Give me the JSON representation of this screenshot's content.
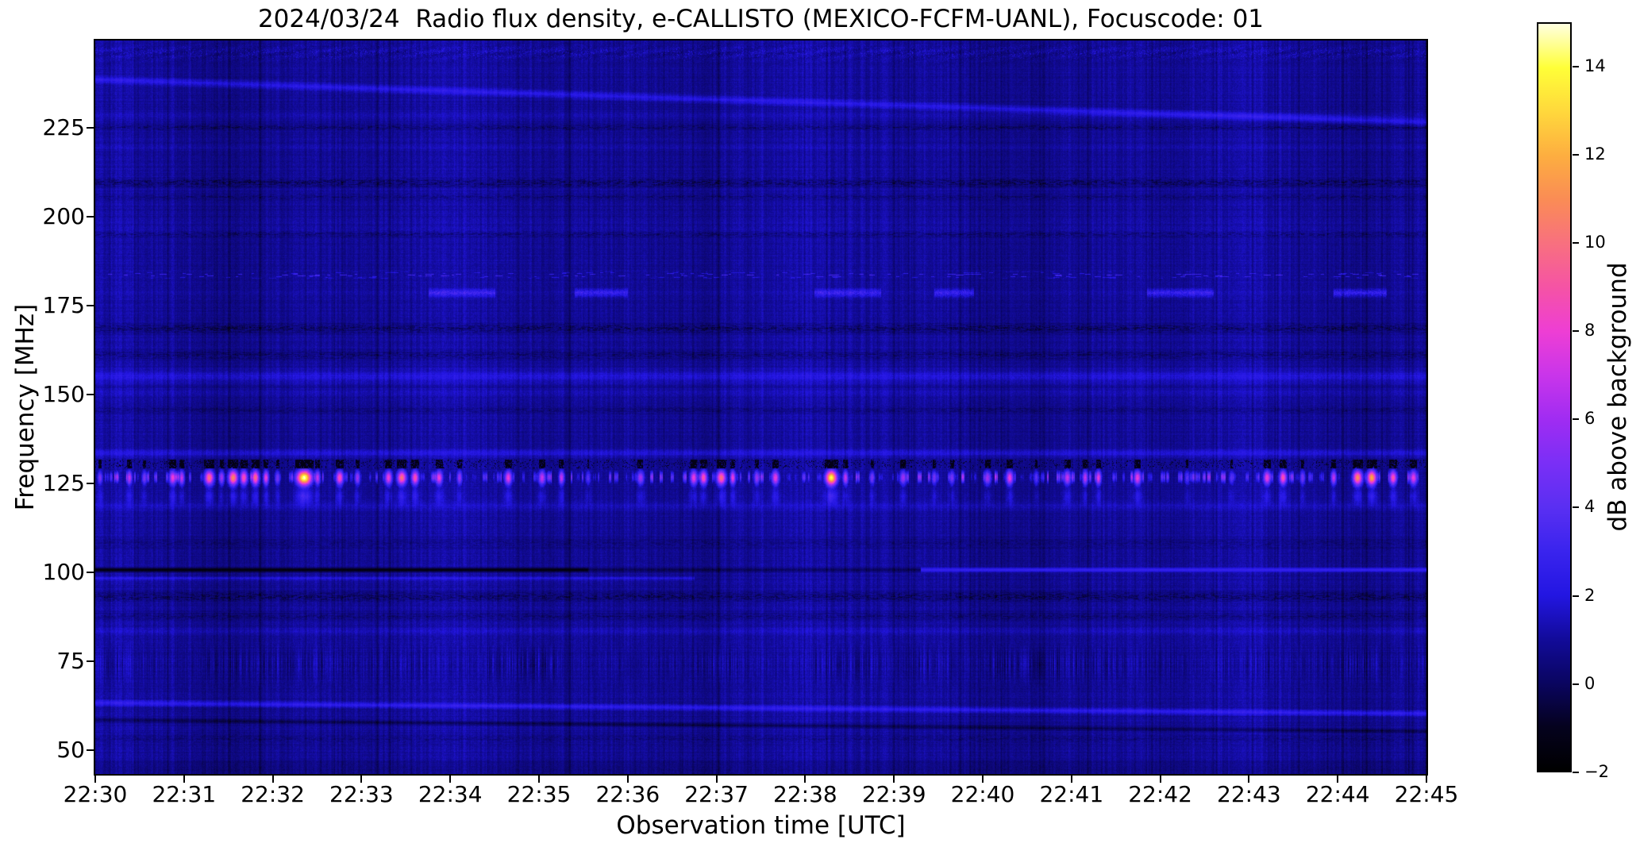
{
  "chart_data": {
    "type": "heatmap",
    "title": "2024/03/24  Radio flux density, e-CALLISTO (MEXICO-FCFM-UANL), Focuscode: 01",
    "xlabel": "Observation time [UTC]",
    "ylabel": "Frequency [MHz]",
    "x_ticks": [
      "22:30",
      "22:31",
      "22:32",
      "22:33",
      "22:34",
      "22:35",
      "22:36",
      "22:37",
      "22:38",
      "22:39",
      "22:40",
      "22:41",
      "22:42",
      "22:43",
      "22:44",
      "22:45"
    ],
    "y_ticks": [
      225,
      200,
      175,
      150,
      125,
      100,
      75,
      50
    ],
    "time_span_minutes": 15,
    "freq_limits_mhz": [
      43.2,
      249.5
    ],
    "grid": false,
    "legend": "none",
    "colorbar": {
      "label": "dB above background",
      "ticks": [
        -2,
        0,
        2,
        4,
        6,
        8,
        10,
        12,
        14
      ],
      "range": [
        -2,
        15
      ],
      "colormap_stops": [
        {
          "v": -2,
          "c": "#000000"
        },
        {
          "v": -1,
          "c": "#05021e"
        },
        {
          "v": 0,
          "c": "#0a0560"
        },
        {
          "v": 1,
          "c": "#120b9a"
        },
        {
          "v": 2,
          "c": "#2316e2"
        },
        {
          "v": 3,
          "c": "#3a24ee"
        },
        {
          "v": 4,
          "c": "#5a2ff2"
        },
        {
          "v": 5,
          "c": "#7a2ff6"
        },
        {
          "v": 6,
          "c": "#a02cf2"
        },
        {
          "v": 7,
          "c": "#c935ea"
        },
        {
          "v": 8,
          "c": "#ee3ed4"
        },
        {
          "v": 9,
          "c": "#f553a5"
        },
        {
          "v": 10,
          "c": "#f8707f"
        },
        {
          "v": 11,
          "c": "#fa8c55"
        },
        {
          "v": 12,
          "c": "#fdae40"
        },
        {
          "v": 13,
          "c": "#ffd83c"
        },
        {
          "v": 14,
          "c": "#ffff38"
        },
        {
          "v": 15,
          "c": "#ffffe0"
        }
      ]
    },
    "background_db": 0.95,
    "bands": [
      {
        "style": "noise",
        "f": 246.0,
        "w": 3.5,
        "dv": 0.8
      },
      {
        "style": "smooth",
        "f": 228.5,
        "w": 1.2,
        "dv": 0.4
      },
      {
        "style": "speckle",
        "f": 225.0,
        "w": 1.2,
        "dv": -0.9
      },
      {
        "style": "smooth",
        "f": 219.5,
        "w": 1.0,
        "dv": 0.35
      },
      {
        "style": "speckle",
        "f": 209.5,
        "w": 1.8,
        "dv": -1.2
      },
      {
        "style": "speckle",
        "f": 205.5,
        "w": 1.2,
        "dv": -0.7
      },
      {
        "style": "smooth",
        "f": 196.0,
        "w": 3.5,
        "dv": 0.2
      },
      {
        "style": "speckle",
        "f": 195.0,
        "w": 1.3,
        "dv": -0.9
      },
      {
        "style": "dashes",
        "f": 183.5,
        "w": 1.2,
        "dv": 2.4
      },
      {
        "style": "patchy",
        "f": 178.5,
        "w": 1.6,
        "dv": 2.0,
        "segments": [
          [
            0.25,
            0.3
          ],
          [
            0.36,
            0.4
          ],
          [
            0.54,
            0.59
          ],
          [
            0.63,
            0.66
          ],
          [
            0.79,
            0.84
          ],
          [
            0.93,
            0.97
          ]
        ]
      },
      {
        "style": "speckle",
        "f": 168.5,
        "w": 2.0,
        "dv": -1.1
      },
      {
        "style": "speckle",
        "f": 161.0,
        "w": 2.0,
        "dv": -0.8
      },
      {
        "style": "smooth",
        "f": 155.0,
        "w": 2.8,
        "dv": 1.0
      },
      {
        "style": "smooth",
        "f": 150.5,
        "w": 1.6,
        "dv": 0.5
      },
      {
        "style": "speckle",
        "f": 145.5,
        "w": 1.5,
        "dv": -0.6
      },
      {
        "style": "smooth",
        "f": 133.5,
        "w": 1.6,
        "dv": 1.1
      },
      {
        "style": "smooth",
        "f": 118.5,
        "w": 2.0,
        "dv": 0.55
      },
      {
        "style": "speckle",
        "f": 108.0,
        "w": 2.5,
        "dv": -0.5
      },
      {
        "style": "speckle",
        "f": 93.0,
        "w": 2.0,
        "dv": -1.1
      },
      {
        "style": "speckle",
        "f": 87.5,
        "w": 1.5,
        "dv": -0.7
      },
      {
        "style": "smooth",
        "f": 83.5,
        "w": 1.5,
        "dv": 0.5
      },
      {
        "style": "vstripes",
        "f": 74.0,
        "w": 6.5,
        "dv": 0.85
      },
      {
        "style": "speckle",
        "f": 53.0,
        "w": 2.0,
        "dv": -0.5
      }
    ],
    "slope_features": [
      {
        "f0": 238.5,
        "f1": 226.5,
        "w": 1.5,
        "dv": 1.4
      },
      {
        "f0": 63.2,
        "f1": 60.2,
        "w": 1.2,
        "dv": 1.7
      },
      {
        "f0": 58.4,
        "f1": 55.2,
        "w": 0.9,
        "dv": -1.2
      }
    ],
    "rfi_100mhz": {
      "f": 100.6,
      "w": 0.9,
      "segments": [
        {
          "from": 0.0,
          "to": 0.37,
          "mode": "set",
          "v": -1.75
        },
        {
          "from": 0.37,
          "to": 0.62,
          "mode": "add",
          "v": -1.2
        },
        {
          "from": 0.62,
          "to": 1.0,
          "mode": "set",
          "v": 2.9
        }
      ],
      "bright_below": {
        "f": 98.2,
        "w": 0.8,
        "dv": 1.1,
        "x_to": 0.45
      }
    },
    "burst_band": {
      "center_mhz": 126.5,
      "half_width_mhz": 4,
      "base_darkening_db": -3.4,
      "minor_blip_db_range": [
        1.5,
        5.5
      ],
      "bursts_t_db_w": [
        [
          0.05,
          5,
          3
        ],
        [
          0.38,
          7,
          3
        ],
        [
          0.55,
          5,
          3
        ],
        [
          0.87,
          8,
          4
        ],
        [
          0.97,
          7,
          3
        ],
        [
          1.28,
          10,
          5
        ],
        [
          1.42,
          6,
          3
        ],
        [
          1.55,
          11,
          5
        ],
        [
          1.67,
          9,
          4
        ],
        [
          1.8,
          10,
          4
        ],
        [
          1.92,
          8,
          3
        ],
        [
          2.05,
          5,
          3
        ],
        [
          2.35,
          15,
          8
        ],
        [
          2.5,
          7,
          3
        ],
        [
          2.75,
          9,
          4
        ],
        [
          2.95,
          6,
          3
        ],
        [
          3.3,
          8,
          4
        ],
        [
          3.45,
          10,
          5
        ],
        [
          3.6,
          9,
          4
        ],
        [
          3.87,
          8,
          4
        ],
        [
          4.1,
          6,
          3
        ],
        [
          4.65,
          8,
          4
        ],
        [
          5.03,
          7,
          4
        ],
        [
          5.25,
          7,
          3
        ],
        [
          5.55,
          4,
          3
        ],
        [
          6.14,
          6,
          4
        ],
        [
          6.74,
          8,
          4
        ],
        [
          6.85,
          9,
          4
        ],
        [
          7.05,
          10,
          5
        ],
        [
          7.18,
          8,
          3
        ],
        [
          7.45,
          6,
          3
        ],
        [
          7.66,
          8,
          4
        ],
        [
          8.29,
          14,
          6
        ],
        [
          8.45,
          7,
          3
        ],
        [
          8.75,
          5,
          3
        ],
        [
          9.1,
          6,
          4
        ],
        [
          9.45,
          5,
          3
        ],
        [
          9.65,
          5,
          3
        ],
        [
          10.05,
          6,
          4
        ],
        [
          10.3,
          8,
          4
        ],
        [
          10.6,
          4,
          3
        ],
        [
          10.95,
          7,
          4
        ],
        [
          11.15,
          7,
          3
        ],
        [
          11.3,
          8,
          3
        ],
        [
          11.74,
          8,
          4
        ],
        [
          12.3,
          4,
          3
        ],
        [
          12.8,
          4,
          3
        ],
        [
          13.2,
          8,
          4
        ],
        [
          13.38,
          9,
          4
        ],
        [
          13.6,
          5,
          3
        ],
        [
          13.95,
          7,
          3
        ],
        [
          14.22,
          11,
          5
        ],
        [
          14.38,
          12,
          5
        ],
        [
          14.62,
          9,
          4
        ],
        [
          14.85,
          8,
          4
        ]
      ]
    }
  }
}
